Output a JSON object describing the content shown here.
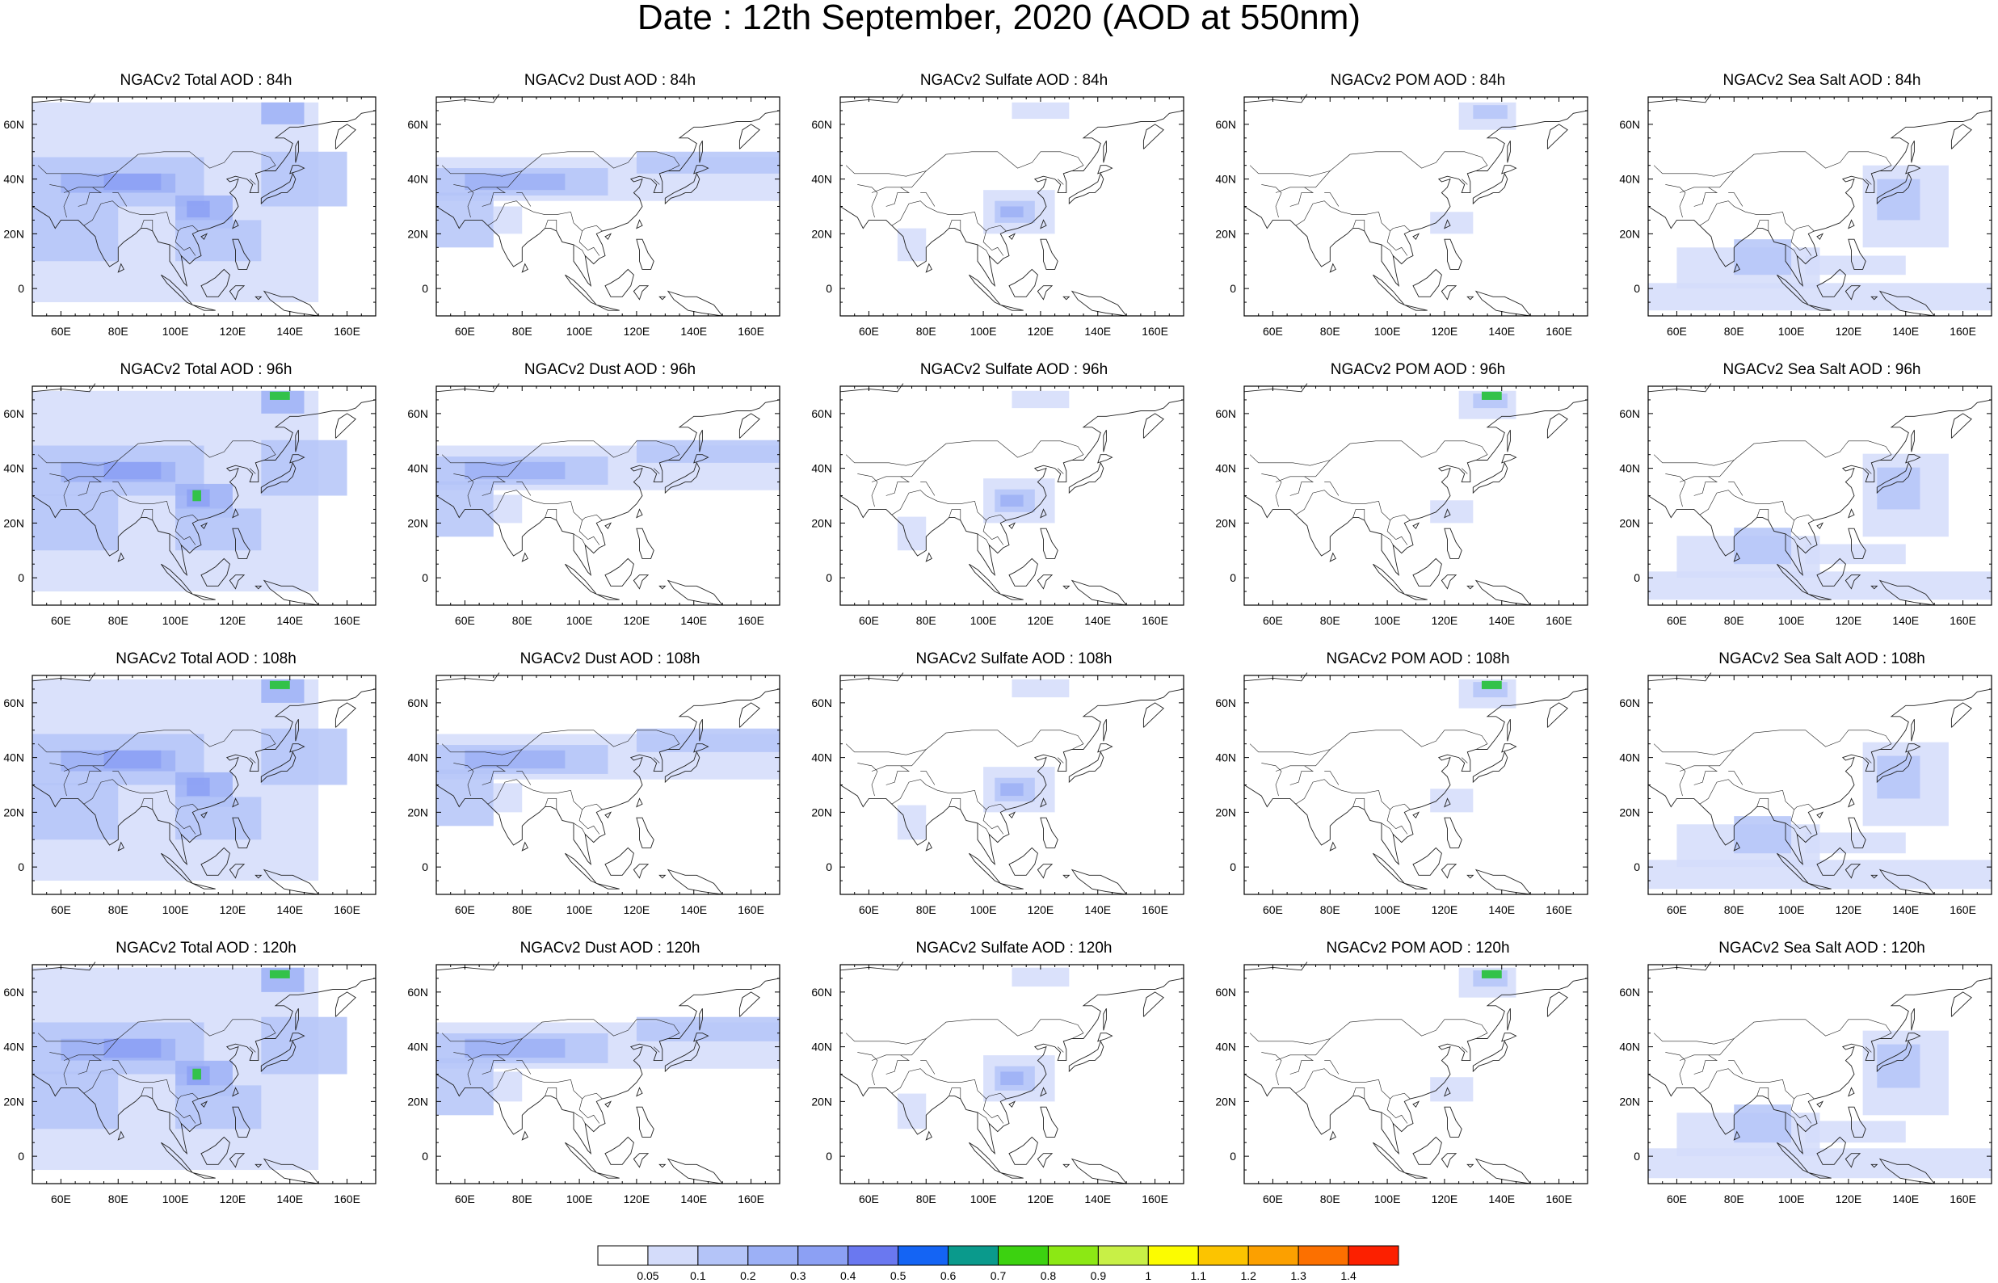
{
  "title": "Date : 12th September, 2020 (AOD at 550nm)",
  "axes": {
    "lon_ticks": [
      "60E",
      "80E",
      "100E",
      "120E",
      "140E",
      "160E"
    ],
    "lon_values": [
      60,
      80,
      100,
      120,
      140,
      160
    ],
    "lat_ticks": [
      "60N",
      "40N",
      "20N",
      "0"
    ],
    "lat_values": [
      60,
      40,
      20,
      0
    ],
    "lon_range": [
      50,
      170
    ],
    "lat_range": [
      -10,
      70
    ]
  },
  "panels": [
    {
      "title": "NGACv2 Total AOD : 84h",
      "species": "total",
      "lead_hours": 84
    },
    {
      "title": "NGACv2 Dust AOD : 84h",
      "species": "dust",
      "lead_hours": 84
    },
    {
      "title": "NGACv2 Sulfate AOD : 84h",
      "species": "sulfate",
      "lead_hours": 84
    },
    {
      "title": "NGACv2 POM AOD : 84h",
      "species": "pom",
      "lead_hours": 84
    },
    {
      "title": "NGACv2 Sea Salt AOD : 84h",
      "species": "seasalt",
      "lead_hours": 84
    },
    {
      "title": "NGACv2 Total AOD : 96h",
      "species": "total",
      "lead_hours": 96
    },
    {
      "title": "NGACv2 Dust AOD : 96h",
      "species": "dust",
      "lead_hours": 96
    },
    {
      "title": "NGACv2 Sulfate AOD : 96h",
      "species": "sulfate",
      "lead_hours": 96
    },
    {
      "title": "NGACv2 POM AOD : 96h",
      "species": "pom",
      "lead_hours": 96
    },
    {
      "title": "NGACv2 Sea Salt AOD : 96h",
      "species": "seasalt",
      "lead_hours": 96
    },
    {
      "title": "NGACv2 Total AOD : 108h",
      "species": "total",
      "lead_hours": 108
    },
    {
      "title": "NGACv2 Dust AOD : 108h",
      "species": "dust",
      "lead_hours": 108
    },
    {
      "title": "NGACv2 Sulfate AOD : 108h",
      "species": "sulfate",
      "lead_hours": 108
    },
    {
      "title": "NGACv2 POM AOD : 108h",
      "species": "pom",
      "lead_hours": 108
    },
    {
      "title": "NGACv2 Sea Salt AOD : 108h",
      "species": "seasalt",
      "lead_hours": 108
    },
    {
      "title": "NGACv2 Total AOD : 120h",
      "species": "total",
      "lead_hours": 120
    },
    {
      "title": "NGACv2 Dust AOD : 120h",
      "species": "dust",
      "lead_hours": 120
    },
    {
      "title": "NGACv2 Sulfate AOD : 120h",
      "species": "sulfate",
      "lead_hours": 120
    },
    {
      "title": "NGACv2 POM AOD : 120h",
      "species": "pom",
      "lead_hours": 120
    },
    {
      "title": "NGACv2 Sea Salt  AOD : 120h",
      "species": "seasalt",
      "lead_hours": 120
    }
  ],
  "colorbar": {
    "labels": [
      "0.05",
      "0.1",
      "0.2",
      "0.3",
      "0.4",
      "0.5",
      "0.6",
      "0.7",
      "0.8",
      "0.9",
      "1",
      "1.1",
      "1.2",
      "1.3",
      "1.4"
    ],
    "colors": [
      "#ffffff",
      "#d4dcfa",
      "#b4c4f8",
      "#9cb0f6",
      "#8ca0f4",
      "#6a78f0",
      "#1464f4",
      "#0a9a8c",
      "#3cd210",
      "#8ce814",
      "#c8f046",
      "#fcfc00",
      "#fcc400",
      "#fca000",
      "#fc7000",
      "#fc2000"
    ]
  }
}
